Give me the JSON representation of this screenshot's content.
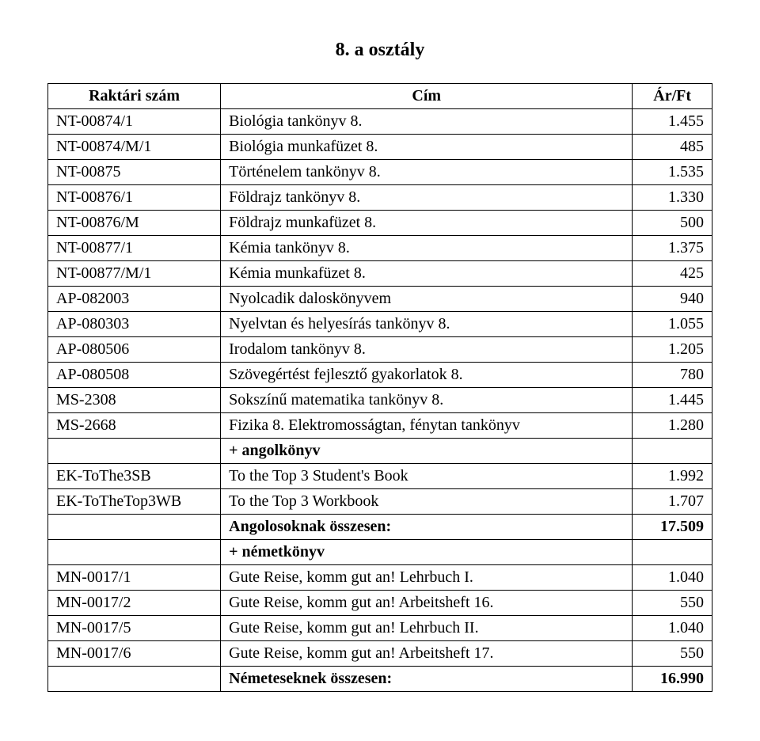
{
  "heading": "8. a osztály",
  "columns": [
    "Raktári szám",
    "Cím",
    "Ár/Ft"
  ],
  "rows": [
    {
      "code": "NT-00874/1",
      "title": "Biológia tankönyv 8.",
      "price": "1.455",
      "bold": false
    },
    {
      "code": "NT-00874/M/1",
      "title": "Biológia munkafüzet 8.",
      "price": "485",
      "bold": false
    },
    {
      "code": "NT-00875",
      "title": "Történelem tankönyv 8.",
      "price": "1.535",
      "bold": false
    },
    {
      "code": "NT-00876/1",
      "title": "Földrajz tankönyv 8.",
      "price": "1.330",
      "bold": false
    },
    {
      "code": "NT-00876/M",
      "title": "Földrajz munkafüzet 8.",
      "price": "500",
      "bold": false
    },
    {
      "code": "NT-00877/1",
      "title": "Kémia tankönyv 8.",
      "price": "1.375",
      "bold": false
    },
    {
      "code": "NT-00877/M/1",
      "title": "Kémia munkafüzet 8.",
      "price": "425",
      "bold": false
    },
    {
      "code": "AP-082003",
      "title": "Nyolcadik daloskönyvem",
      "price": "940",
      "bold": false
    },
    {
      "code": "AP-080303",
      "title": "Nyelvtan és helyesírás tankönyv 8.",
      "price": "1.055",
      "bold": false
    },
    {
      "code": "AP-080506",
      "title": "Irodalom tankönyv 8.",
      "price": "1.205",
      "bold": false
    },
    {
      "code": "AP-080508",
      "title": "Szövegértést fejlesztő gyakorlatok 8.",
      "price": "780",
      "bold": false
    },
    {
      "code": "MS-2308",
      "title": "Sokszínű matematika tankönyv 8.",
      "price": "1.445",
      "bold": false
    },
    {
      "code": "MS-2668",
      "title": "Fizika 8. Elektromosságtan, fénytan tankönyv",
      "price": "1.280",
      "bold": false
    },
    {
      "code": "",
      "title": "+ angolkönyv",
      "price": "",
      "bold": true
    },
    {
      "code": "EK-ToThe3SB",
      "title": "To the Top 3 Student's Book",
      "price": "1.992",
      "bold": false
    },
    {
      "code": "EK-ToTheTop3WB",
      "title": "To the Top 3 Workbook",
      "price": "1.707",
      "bold": false
    },
    {
      "code": "",
      "title": "Angolosoknak összesen:",
      "price": "17.509",
      "bold": true
    },
    {
      "code": "",
      "title": "+ németkönyv",
      "price": "",
      "bold": true
    },
    {
      "code": "MN-0017/1",
      "title": "Gute Reise, komm gut an! Lehrbuch I.",
      "price": "1.040",
      "bold": false
    },
    {
      "code": "MN-0017/2",
      "title": "Gute Reise, komm gut an! Arbeitsheft 16.",
      "price": "550",
      "bold": false
    },
    {
      "code": "MN-0017/5",
      "title": "Gute Reise, komm gut an! Lehrbuch II.",
      "price": "1.040",
      "bold": false
    },
    {
      "code": "MN-0017/6",
      "title": "Gute Reise, komm gut an! Arbeitsheft 17.",
      "price": "550",
      "bold": false
    },
    {
      "code": "",
      "title": "Németeseknek összesen:",
      "price": "16.990",
      "bold": true
    }
  ]
}
